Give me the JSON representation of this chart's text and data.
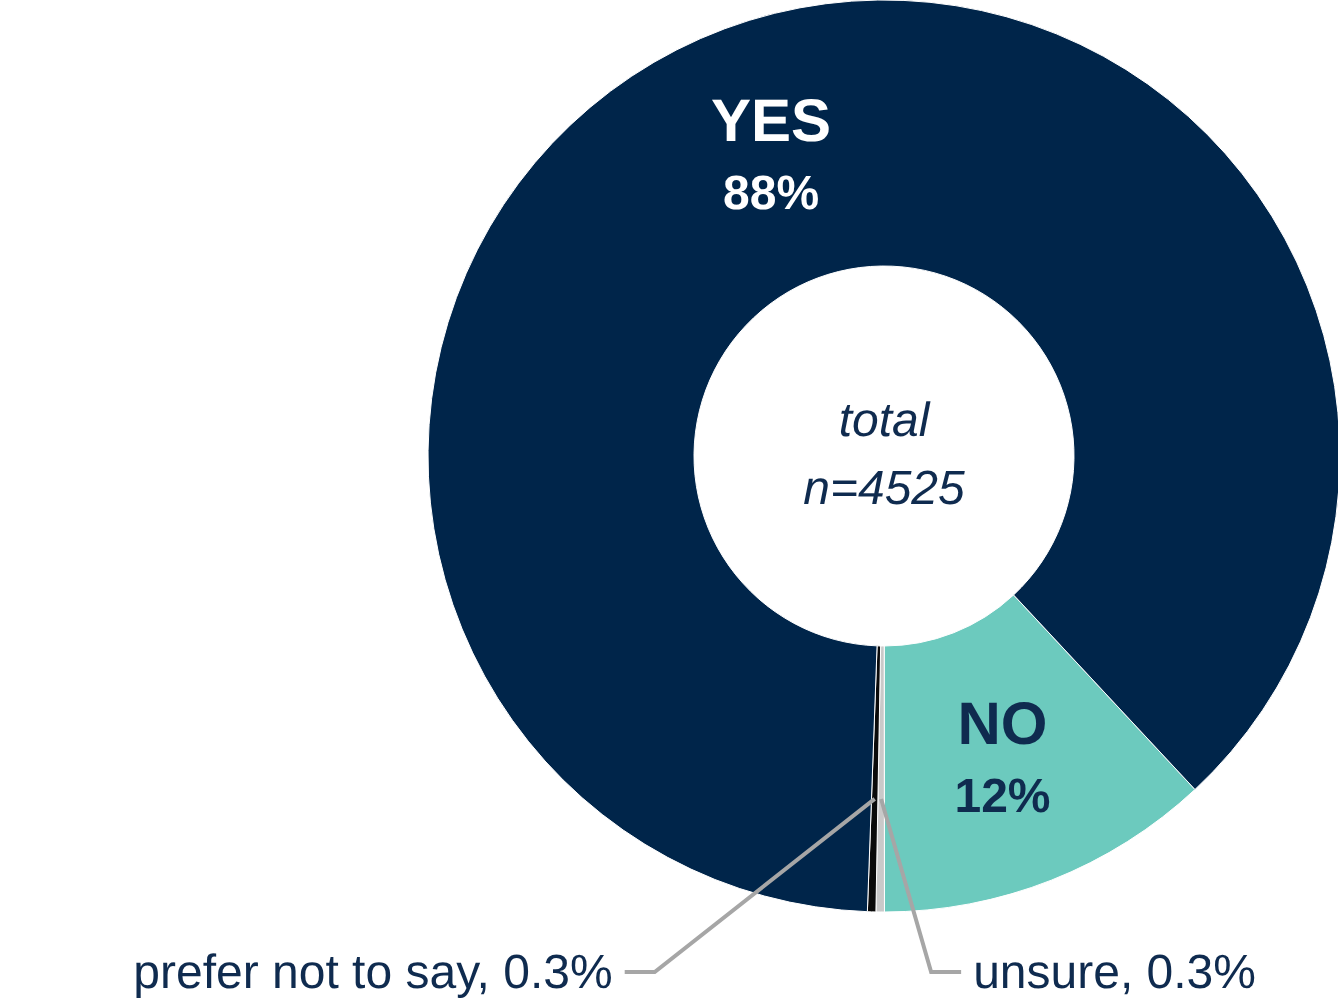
{
  "chart_data": {
    "type": "donut",
    "categories": [
      "NO",
      "unsure, 0.3%",
      "prefer not to say, 0.3%",
      "YES"
    ],
    "values": [
      12,
      0.3,
      0.3,
      88
    ],
    "value_labels": [
      "12%",
      null,
      null,
      "88%"
    ],
    "colors": [
      "#6ccabe",
      "#c9c9c9",
      "#0a0a0a",
      "#00254a"
    ],
    "annotations": [
      "total n=4525"
    ]
  }
}
